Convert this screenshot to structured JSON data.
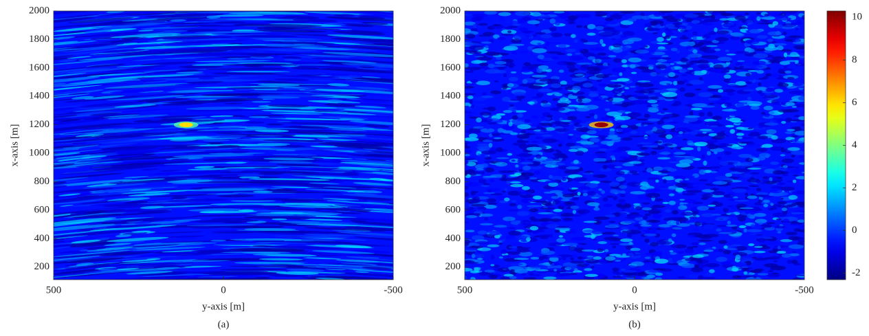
{
  "chart_data": [
    {
      "type": "heatmap",
      "caption": "(a)",
      "xlabel": "y-axis [m]",
      "ylabel": "x-axis [m]",
      "xlim": [
        500,
        -500
      ],
      "xticks": [
        500,
        0,
        -500
      ],
      "ylim": [
        112,
        2000
      ],
      "yticks": [
        200,
        400,
        600,
        800,
        1000,
        1200,
        1400,
        1600,
        1800,
        2000
      ],
      "colormap": "jet",
      "texture": "streaks",
      "peak": {
        "x": 110,
        "y": 1200,
        "value": 6
      }
    },
    {
      "type": "heatmap",
      "caption": "(b)",
      "xlabel": "y-axis [m]",
      "ylabel": "x-axis [m]",
      "xlim": [
        500,
        -500
      ],
      "xticks": [
        500,
        0,
        -500
      ],
      "ylim": [
        112,
        2000
      ],
      "yticks": [
        200,
        400,
        600,
        800,
        1000,
        1200,
        1400,
        1600,
        1800,
        2000
      ],
      "colormap": "jet",
      "texture": "speckle",
      "peak": {
        "x": 98,
        "y": 1200,
        "value": 10
      },
      "colorbar": {
        "lim": [
          -2.3,
          10.3
        ],
        "ticks": [
          -2,
          0,
          2,
          4,
          6,
          8,
          10
        ]
      }
    }
  ]
}
